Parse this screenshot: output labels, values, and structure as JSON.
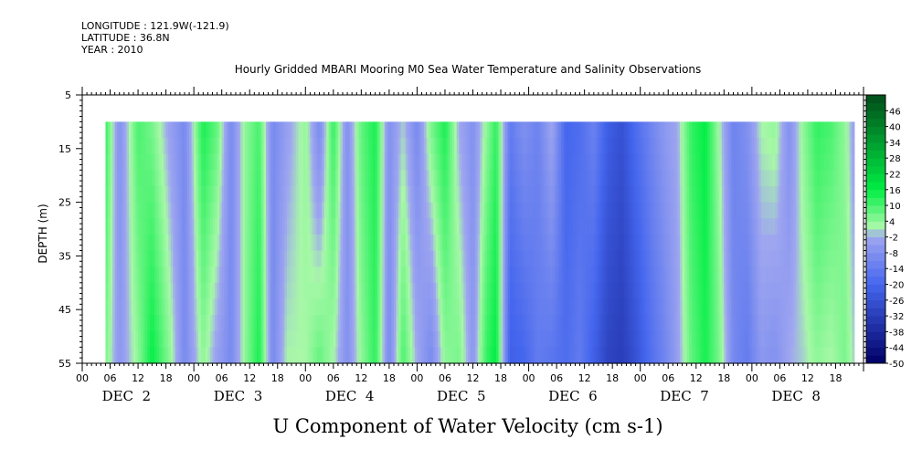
{
  "header": {
    "longitude": "LONGITUDE : 121.9W(-121.9)",
    "latitude": "LATITUDE : 36.8N",
    "year": "YEAR : 2010"
  },
  "chart_data": {
    "type": "heatmap",
    "title": "Hourly Gridded MBARI Mooring M0 Sea Water Temperature and Salinity Observations",
    "xlabel": "U Component of Water Velocity (cm s-1)",
    "ylabel": "DEPTH (m)",
    "ylim": [
      55,
      5
    ],
    "yticks": [
      5,
      15,
      25,
      35,
      45,
      55
    ],
    "xlim_hours": [
      0,
      168
    ],
    "hour_ticks": [
      "00",
      "06",
      "12",
      "18",
      "00",
      "06",
      "12",
      "18",
      "00",
      "06",
      "12",
      "18",
      "00",
      "06",
      "12",
      "18",
      "00",
      "06",
      "12",
      "18",
      "00",
      "06",
      "12",
      "18",
      "00",
      "06",
      "12",
      "18"
    ],
    "day_labels": [
      "DEC  2",
      "DEC  3",
      "DEC  4",
      "DEC  5",
      "DEC  6",
      "DEC  7",
      "DEC  8"
    ],
    "data_depth_range": [
      10,
      55
    ],
    "data_hour_range": [
      5,
      166
    ],
    "colorbar": {
      "labels": [
        "46",
        "40",
        "34",
        "28",
        "22",
        "16",
        "10",
        "4",
        "-2",
        "-8",
        "-14",
        "-20",
        "-26",
        "-32",
        "-38",
        "-44",
        "-50"
      ],
      "min": -50,
      "max": 52,
      "step": 3
    },
    "u_profile": [
      {
        "hour": 5,
        "surface": 12,
        "bottom": 6
      },
      {
        "hour": 8,
        "surface": -8,
        "bottom": -6
      },
      {
        "hour": 12,
        "surface": 10,
        "bottom": 4
      },
      {
        "hour": 15,
        "surface": 6,
        "bottom": 16
      },
      {
        "hour": 19,
        "surface": -4,
        "bottom": 4
      },
      {
        "hour": 22,
        "surface": -10,
        "bottom": -10
      },
      {
        "hour": 26,
        "surface": 14,
        "bottom": 4
      },
      {
        "hour": 29,
        "surface": 8,
        "bottom": -4
      },
      {
        "hour": 32,
        "surface": -10,
        "bottom": -10
      },
      {
        "hour": 35,
        "surface": 4,
        "bottom": 4
      },
      {
        "hour": 38,
        "surface": 10,
        "bottom": 14
      },
      {
        "hour": 41,
        "surface": -10,
        "bottom": -10
      },
      {
        "hour": 44,
        "surface": -4,
        "bottom": 2
      },
      {
        "hour": 48,
        "surface": 4,
        "bottom": 2
      },
      {
        "hour": 51,
        "surface": -10,
        "bottom": 8
      },
      {
        "hour": 54,
        "surface": 12,
        "bottom": 2
      },
      {
        "hour": 57,
        "surface": -8,
        "bottom": -8
      },
      {
        "hour": 60,
        "surface": 8,
        "bottom": 4
      },
      {
        "hour": 63,
        "surface": 14,
        "bottom": 12
      },
      {
        "hour": 66,
        "surface": -8,
        "bottom": -10
      },
      {
        "hour": 69,
        "surface": 0,
        "bottom": 10
      },
      {
        "hour": 72,
        "surface": -10,
        "bottom": -2
      },
      {
        "hour": 75,
        "surface": 6,
        "bottom": -10
      },
      {
        "hour": 78,
        "surface": 14,
        "bottom": 4
      },
      {
        "hour": 81,
        "surface": -2,
        "bottom": 6
      },
      {
        "hour": 84,
        "surface": -8,
        "bottom": -6
      },
      {
        "hour": 87,
        "surface": 4,
        "bottom": 12
      },
      {
        "hour": 89,
        "surface": 12,
        "bottom": 16
      },
      {
        "hour": 92,
        "surface": -14,
        "bottom": -22
      },
      {
        "hour": 95,
        "surface": -8,
        "bottom": -20
      },
      {
        "hour": 98,
        "surface": -12,
        "bottom": -14
      },
      {
        "hour": 101,
        "surface": -2,
        "bottom": -16
      },
      {
        "hour": 104,
        "surface": -20,
        "bottom": -18
      },
      {
        "hour": 107,
        "surface": -18,
        "bottom": -14
      },
      {
        "hour": 110,
        "surface": -12,
        "bottom": -22
      },
      {
        "hour": 113,
        "surface": -22,
        "bottom": -30
      },
      {
        "hour": 116,
        "surface": -26,
        "bottom": -32
      },
      {
        "hour": 119,
        "surface": -18,
        "bottom": -26
      },
      {
        "hour": 122,
        "surface": -12,
        "bottom": -18
      },
      {
        "hour": 125,
        "surface": -6,
        "bottom": -12
      },
      {
        "hour": 128,
        "surface": -2,
        "bottom": -4
      },
      {
        "hour": 131,
        "surface": 12,
        "bottom": 8
      },
      {
        "hour": 134,
        "surface": 16,
        "bottom": 14
      },
      {
        "hour": 137,
        "surface": 2,
        "bottom": 6
      },
      {
        "hour": 140,
        "surface": -12,
        "bottom": -10
      },
      {
        "hour": 143,
        "surface": -8,
        "bottom": -14
      },
      {
        "hour": 146,
        "surface": 2,
        "bottom": -6
      },
      {
        "hour": 149,
        "surface": 4,
        "bottom": -8
      },
      {
        "hour": 152,
        "surface": -8,
        "bottom": -2
      },
      {
        "hour": 155,
        "surface": 4,
        "bottom": 0
      },
      {
        "hour": 158,
        "surface": 12,
        "bottom": 4
      },
      {
        "hour": 161,
        "surface": 10,
        "bottom": 2
      },
      {
        "hour": 164,
        "surface": 4,
        "bottom": 6
      },
      {
        "hour": 166,
        "surface": -4,
        "bottom": 0
      }
    ],
    "colors": {
      "negative_extreme": "#000066",
      "negative_mid": "#4466ee",
      "near_zero": "#9fa6f0",
      "positive_low": "#a8f8a8",
      "positive_mid": "#00ee44",
      "positive_extreme": "#004d1a"
    }
  }
}
